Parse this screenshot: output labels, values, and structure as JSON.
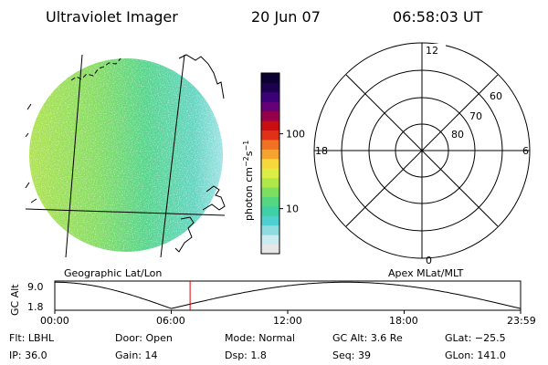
{
  "header": {
    "title": "Ultraviolet Imager",
    "date": "20 Jun 07",
    "time": "06:58:03 UT"
  },
  "panels": {
    "left_label": "Geographic Lat/Lon",
    "right_label": "Apex MLat/MLT"
  },
  "colorbar": {
    "unit_prefix": "photon cm",
    "unit_sup1": "−2",
    "unit_mid": "s",
    "unit_sup2": "−1",
    "ticks": [
      {
        "value": 100,
        "label": "100"
      },
      {
        "value": 10,
        "label": "10"
      }
    ],
    "range": [
      2.5,
      650
    ],
    "colors": [
      "#e6e6e6",
      "#c8ecf0",
      "#8fdce0",
      "#4fd0d0",
      "#40d0a8",
      "#55d680",
      "#7ede5e",
      "#b0e84a",
      "#dcee46",
      "#f6d83c",
      "#f6a230",
      "#f07024",
      "#e03018",
      "#c80e0e",
      "#96004a",
      "#640078",
      "#3c0078",
      "#1e0050",
      "#0c0030"
    ]
  },
  "polar": {
    "mlt_labels": {
      "top": "12",
      "left": "18",
      "right": "6",
      "bottom": "0"
    },
    "lat_labels": [
      "60",
      "70",
      "80"
    ]
  },
  "altitude_plot": {
    "ylabel": "GC Alt",
    "yticks": [
      "9.0",
      "1.8"
    ],
    "x_ticks": [
      "00:00",
      "06:00",
      "12:00",
      "18:00",
      "23:59"
    ],
    "marker_time_hours": 6.97
  },
  "info": {
    "row1": [
      {
        "key": "Flt:",
        "value": "LBHL"
      },
      {
        "key": "Door:",
        "value": "Open"
      },
      {
        "key": "Mode:",
        "value": "Normal"
      },
      {
        "key": "GC Alt:",
        "value": "3.6 Re"
      },
      {
        "key": "GLat:",
        "value": "−25.5"
      }
    ],
    "row2": [
      {
        "key": "IP:",
        "value": "36.0"
      },
      {
        "key": "Gain:",
        "value": "14"
      },
      {
        "key": "Dsp:",
        "value": "1.8"
      },
      {
        "key": "Seq:",
        "value": "39"
      },
      {
        "key": "GLon:",
        "value": "141.0"
      }
    ]
  }
}
